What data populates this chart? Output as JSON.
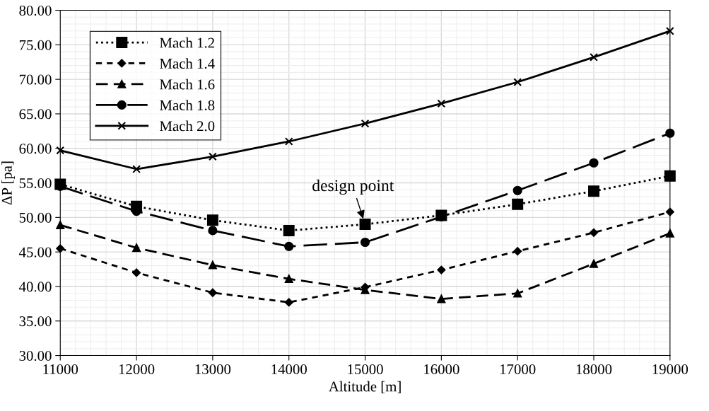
{
  "chart_data": {
    "type": "line",
    "xlabel": "Altitude [m]",
    "ylabel": "ΔP [pa]",
    "x": [
      11000,
      12000,
      13000,
      14000,
      15000,
      16000,
      17000,
      18000,
      19000
    ],
    "series": [
      {
        "name": "Mach 1.2",
        "color": "#000000",
        "marker": "square",
        "line_style": "dotted",
        "values": [
          54.8,
          51.6,
          49.6,
          48.1,
          49.0,
          50.3,
          51.9,
          53.8,
          56.0
        ]
      },
      {
        "name": "Mach 1.4",
        "color": "#000000",
        "marker": "diamond",
        "line_style": "dashed",
        "values": [
          45.5,
          42.0,
          39.1,
          37.7,
          39.9,
          42.4,
          45.1,
          47.8,
          50.8
        ]
      },
      {
        "name": "Mach 1.6",
        "color": "#000000",
        "marker": "triangle",
        "line_style": "dashed",
        "values": [
          48.9,
          45.6,
          43.1,
          41.1,
          39.5,
          38.2,
          39.0,
          43.3,
          47.7
        ]
      },
      {
        "name": "Mach 1.8",
        "color": "#000000",
        "marker": "circle",
        "line_style": "dashed",
        "values": [
          54.5,
          50.9,
          48.1,
          45.8,
          46.4,
          50.1,
          53.9,
          57.9,
          62.2
        ]
      },
      {
        "name": "Mach 2.0",
        "color": "#000000",
        "marker": "cross",
        "line_style": "solid",
        "values": [
          59.7,
          57.0,
          58.8,
          61.0,
          63.6,
          66.5,
          69.6,
          73.2,
          77.0
        ]
      }
    ],
    "xlim": [
      11000,
      19000
    ],
    "xticks": [
      11000,
      12000,
      13000,
      14000,
      15000,
      16000,
      17000,
      18000,
      19000
    ],
    "ylim": [
      30,
      80
    ],
    "yticks": [
      {
        "value": 30,
        "label": "30.00"
      },
      {
        "value": 35,
        "label": "35.00"
      },
      {
        "value": 40,
        "label": "40.00"
      },
      {
        "value": 45,
        "label": "45.00"
      },
      {
        "value": 50,
        "label": "50.00"
      },
      {
        "value": 55,
        "label": "55.00"
      },
      {
        "value": 60,
        "label": "60.00"
      },
      {
        "value": 65,
        "label": "65.00"
      },
      {
        "value": 70,
        "label": "70.00"
      },
      {
        "value": 75,
        "label": "75.00"
      },
      {
        "value": 80,
        "label": "80.00"
      }
    ],
    "annotations": [
      {
        "text": "design point",
        "x": 15000,
        "y": 49.0
      }
    ],
    "grid": true,
    "legend": "top left"
  }
}
